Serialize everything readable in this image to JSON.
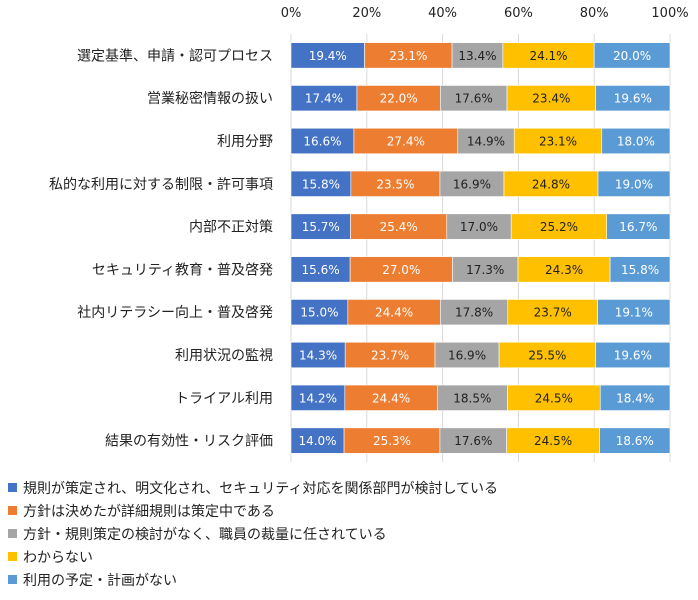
{
  "chart_data": {
    "type": "bar",
    "orientation": "horizontal",
    "stacked": true,
    "xlim": [
      0,
      100
    ],
    "x_ticks": [
      "0%",
      "20%",
      "40%",
      "60%",
      "80%",
      "100%"
    ],
    "categories": [
      "選定基準、申請・認可プロセス",
      "営業秘密情報の扱い",
      "利用分野",
      "私的な利用に対する制限・許可事項",
      "内部不正対策",
      "セキュリティ教育・普及啓発",
      "社内リテラシー向上・普及啓発",
      "利用状況の監視",
      "トライアル利用",
      "結果の有効性・リスク評価"
    ],
    "series": [
      {
        "name": "規則が策定され、明文化され、セキュリティ対応を関係部門が検討している",
        "color": "#4472C4",
        "values": [
          19.4,
          17.4,
          16.6,
          15.8,
          15.7,
          15.6,
          15.0,
          14.3,
          14.2,
          14.0
        ]
      },
      {
        "name": "方針は決めたが詳細規則は策定中である",
        "color": "#ED7D31",
        "values": [
          23.1,
          22.0,
          27.4,
          23.5,
          25.4,
          27.0,
          24.4,
          23.7,
          24.4,
          25.3
        ]
      },
      {
        "name": "方針・規則策定の検討がなく、職員の裁量に任されている",
        "color": "#A5A5A5",
        "values": [
          13.4,
          17.6,
          14.9,
          16.9,
          17.0,
          17.3,
          17.8,
          16.9,
          18.5,
          17.6
        ]
      },
      {
        "name": "わからない",
        "color": "#FFC000",
        "values": [
          24.1,
          23.4,
          23.1,
          24.8,
          25.2,
          24.3,
          23.7,
          25.5,
          24.5,
          24.5
        ]
      },
      {
        "name": "利用の予定・計画がない",
        "color": "#5B9BD5",
        "values": [
          20.0,
          19.6,
          18.0,
          19.0,
          16.7,
          15.8,
          19.1,
          19.6,
          18.4,
          18.6
        ]
      }
    ],
    "value_suffix": "%",
    "grid": true,
    "legend_position": "bottom"
  }
}
